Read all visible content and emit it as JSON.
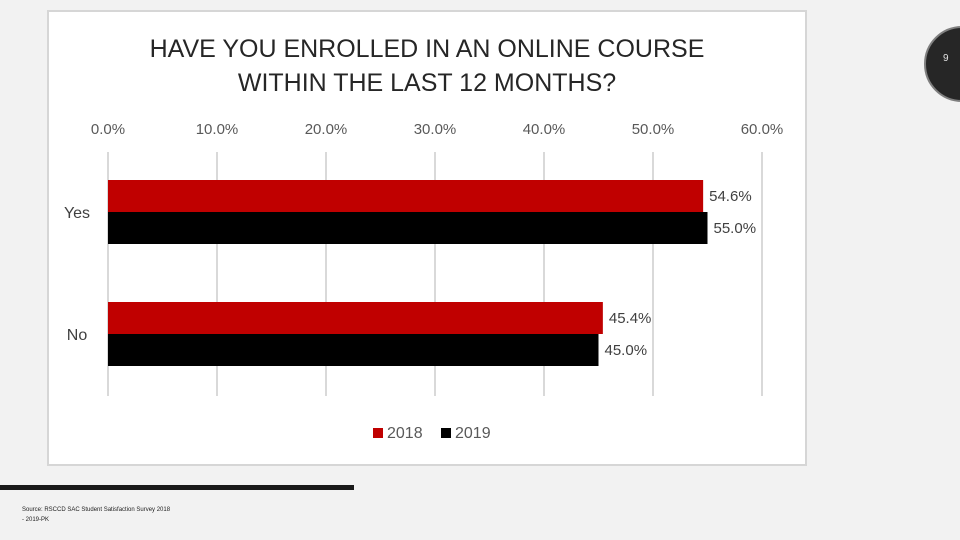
{
  "slide": {
    "page_number": "9",
    "source_line1": "Source: RSCCD SAC Student Satisfaction Survey 2018",
    "source_line2": "- 2019-PK"
  },
  "chart_data": {
    "type": "bar",
    "orientation": "horizontal",
    "title_line1": "HAVE YOU ENROLLED IN AN ONLINE COURSE",
    "title_line2": "WITHIN THE LAST 12 MONTHS?",
    "categories": [
      "Yes",
      "No"
    ],
    "series": [
      {
        "name": "2018",
        "values": [
          54.6,
          45.4
        ],
        "labels": [
          "54.6%",
          "45.4%"
        ],
        "color": "#c00000"
      },
      {
        "name": "2019",
        "values": [
          55.0,
          45.0
        ],
        "labels": [
          "55.0%",
          "45.0%"
        ],
        "color": "#000000"
      }
    ],
    "ticks": [
      "0.0%",
      "10.0%",
      "20.0%",
      "30.0%",
      "40.0%",
      "50.0%",
      "60.0%"
    ],
    "xlim": [
      0,
      60
    ],
    "grid": true,
    "legend_position": "bottom",
    "gridline_color": "#d9d9d9"
  }
}
